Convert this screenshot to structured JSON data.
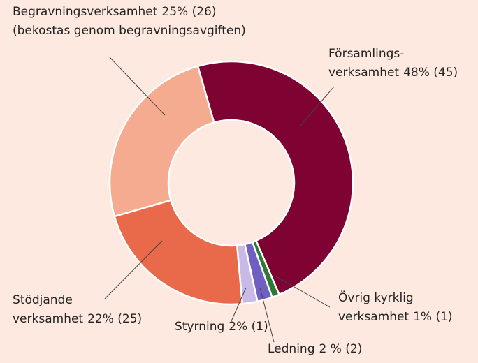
{
  "chart_data": {
    "type": "donut",
    "categories": [
      [
        "Församlings-",
        "verksamhet"
      ],
      [
        "Övrig kyrklig",
        "verksamhet"
      ],
      [
        "Ledning"
      ],
      [
        "Styrning"
      ],
      [
        "Stödjande",
        "verksamhet"
      ],
      [
        "Begravningsverksamhet"
      ]
    ],
    "values": [
      48,
      1,
      2,
      2,
      22,
      25
    ],
    "value_labels": [
      "48% (45)",
      "1% (1)",
      "2 % (2)",
      "2% (1)",
      "22% (25)",
      "25% (26)"
    ],
    "notes": [
      null,
      null,
      null,
      null,
      null,
      "(bekostas genom begravningsavgiften)"
    ],
    "colors": [
      "#7e0232",
      "#2c7a33",
      "#6f5fc0",
      "#c9b9e6",
      "#e96a4b",
      "#f4ab8f"
    ]
  }
}
